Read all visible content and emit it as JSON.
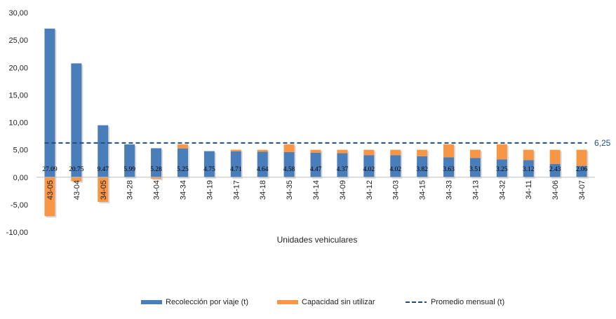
{
  "chart_data": {
    "type": "bar",
    "title": "",
    "xlabel": "Unidades vehiculares",
    "ylabel": "",
    "ylim": [
      -10,
      30
    ],
    "yticks": [
      "-10,00",
      "-5,00",
      "0,00",
      "5,00",
      "10,00",
      "15,00",
      "20,00",
      "25,00",
      "30,00"
    ],
    "ytick_values": [
      -10,
      -5,
      0,
      5,
      10,
      15,
      20,
      25,
      30
    ],
    "categories": [
      "43-05",
      "43-04",
      "34-05",
      "34-28",
      "34-04",
      "34-34",
      "34-19",
      "34-17",
      "34-18",
      "34-35",
      "34-14",
      "34-09",
      "34-12",
      "34-03",
      "34-15",
      "34-33",
      "34-13",
      "34-32",
      "34-11",
      "34-06",
      "34-07"
    ],
    "series": [
      {
        "name": "Recolección por viaje (t)",
        "color": "#4a7ebb",
        "values": [
          27.09,
          20.75,
          9.47,
          5.99,
          5.28,
          5.25,
          4.75,
          4.71,
          4.64,
          4.58,
          4.47,
          4.37,
          4.02,
          4.02,
          3.82,
          3.63,
          3.51,
          3.25,
          3.12,
          2.43,
          2.06
        ],
        "labels": [
          "27.09",
          "20.75",
          "9.47",
          "5.99",
          "5.28",
          "5.25",
          "4.75",
          "4.71",
          "4.64",
          "4.58",
          "4.47",
          "4.37",
          "4.02",
          "4.02",
          "3.82",
          "3.63",
          "3.51",
          "3.25",
          "3.12",
          "2.43",
          "2.06"
        ]
      },
      {
        "name": "Capacidad sin utilizar",
        "color": "#f79646",
        "values": [
          -7.1,
          -0.75,
          -4.5,
          0,
          -0.3,
          0.75,
          0,
          0.3,
          0.35,
          1.42,
          0.53,
          0.63,
          0.98,
          0.98,
          1.18,
          2.37,
          1.49,
          2.75,
          1.88,
          2.57,
          2.94
        ]
      }
    ],
    "average": {
      "name": "Promedio mensual (t)",
      "value": 6.25,
      "label": "6,25",
      "color": "#1f4e79"
    },
    "legend_position": "bottom",
    "grid": false
  }
}
